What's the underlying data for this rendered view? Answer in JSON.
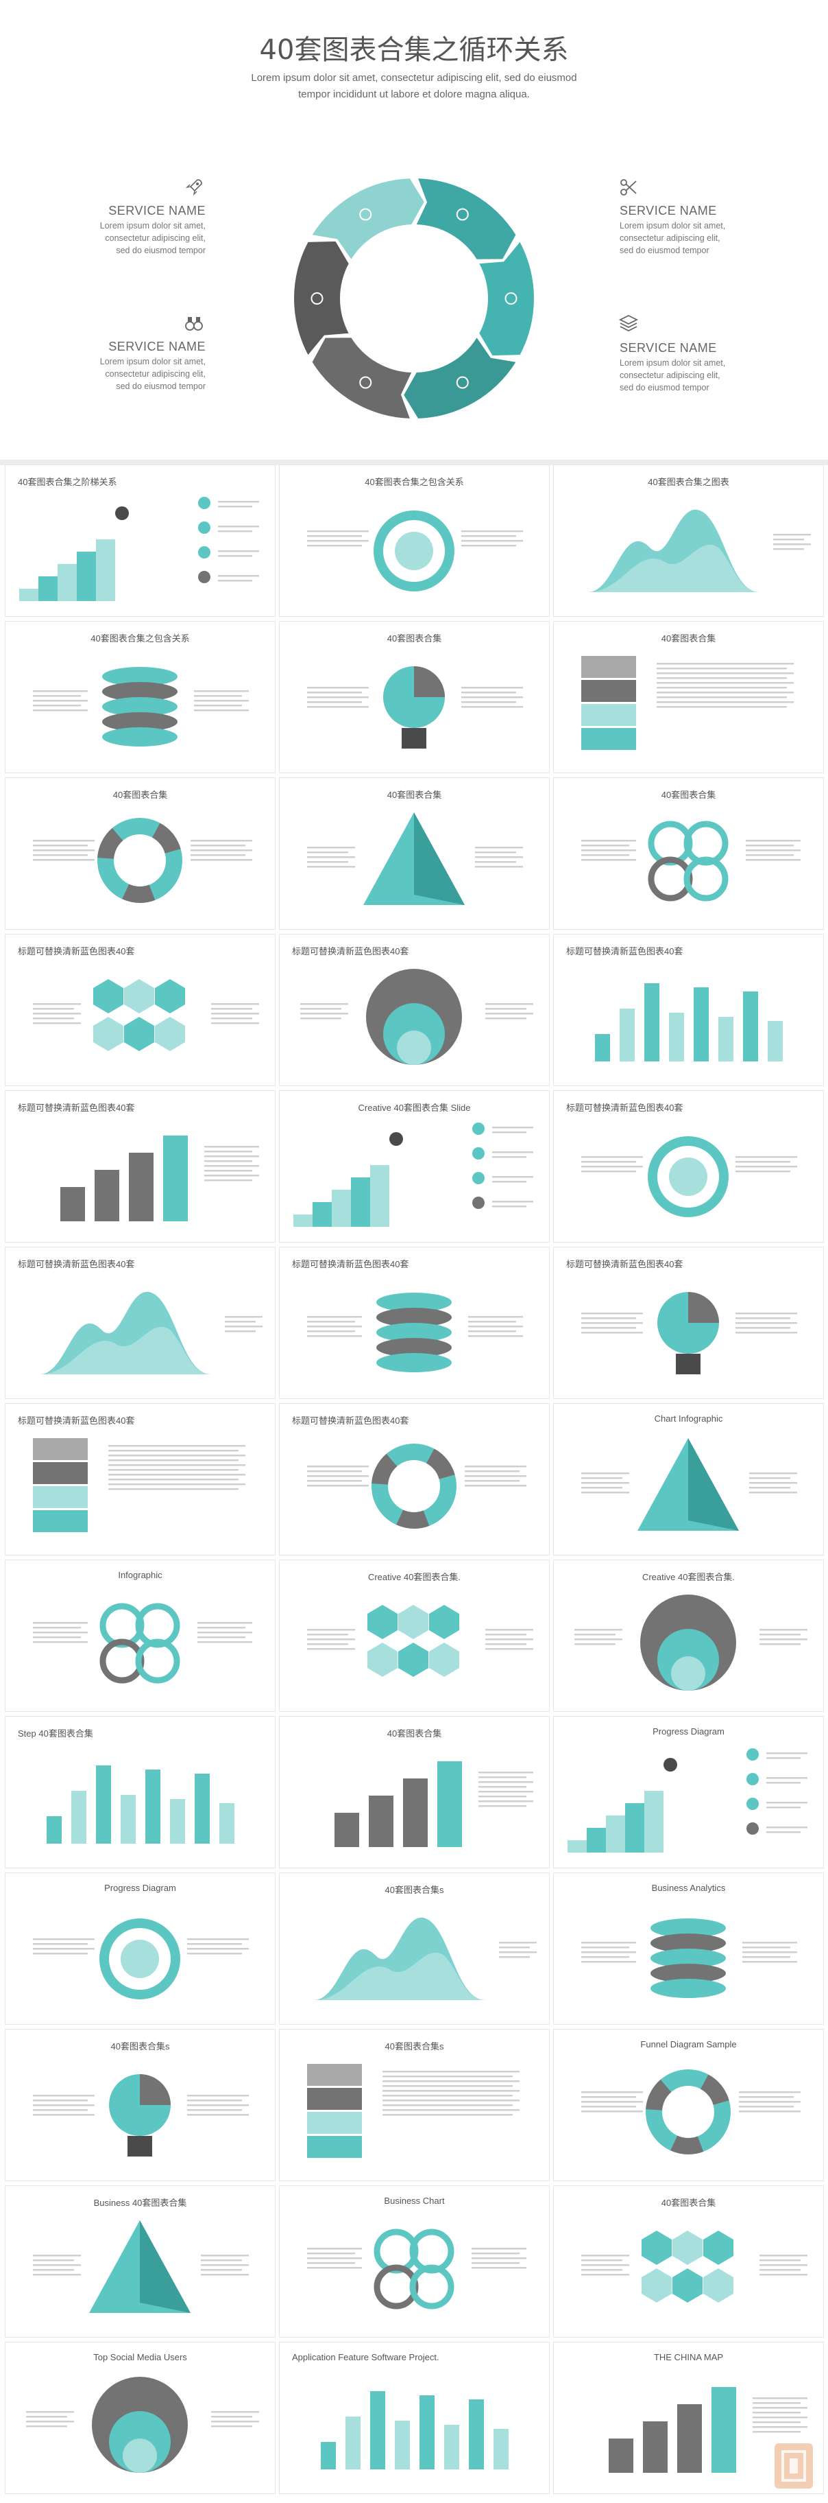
{
  "hero": {
    "title": "40套图表合集之循环关系",
    "subtitle": "Lorem ipsum dolor sit amet, consectetur adipiscing elit, sed do eiusmod tempor incididunt ut labore et dolore magna aliqua.",
    "services": [
      {
        "name": "SERVICE NAME",
        "text": "Lorem ipsum dolor sit amet, consectetur adipiscing elit, sed do eiusmod tempor",
        "icon": "rocket-icon"
      },
      {
        "name": "SERVICE NAME",
        "text": "Lorem ipsum dolor sit amet, consectetur adipiscing elit, sed do eiusmod tempor",
        "icon": "binoculars-icon"
      },
      {
        "name": "SERVICE NAME",
        "text": "Lorem ipsum dolor sit amet, consectetur adipiscing elit, sed do eiusmod tempor",
        "icon": "scissors-icon"
      },
      {
        "name": "SERVICE NAME",
        "text": "Lorem ipsum dolor sit amet, consectetur adipiscing elit, sed do eiusmod tempor",
        "icon": "layers-icon"
      }
    ]
  },
  "colors": {
    "teal": "#5cc6c3",
    "teal_dark": "#3a9e9b",
    "teal_light": "#a7dfdc",
    "gray": "#737373",
    "gray_dark": "#4a4a4a",
    "gray_light": "#a8a8a8"
  },
  "thumbs": [
    {
      "title": "40套图表合集之阶梯关系",
      "align": "left"
    },
    {
      "title": "40套图表合集之包含关系",
      "align": "center"
    },
    {
      "title": "40套图表合集之图表",
      "align": "center"
    },
    {
      "title": "40套图表合集之包含关系",
      "align": "center"
    },
    {
      "title": "40套图表合集",
      "align": "center"
    },
    {
      "title": "40套图表合集",
      "align": "center"
    },
    {
      "title": "40套图表合集",
      "align": "center"
    },
    {
      "title": "40套图表合集",
      "align": "center"
    },
    {
      "title": "40套图表合集",
      "align": "center"
    },
    {
      "title": "标题可替换清新蓝色图表40套",
      "align": "left"
    },
    {
      "title": "标题可替换清新蓝色图表40套",
      "align": "left"
    },
    {
      "title": "标题可替换清新蓝色图表40套",
      "align": "left"
    },
    {
      "title": "标题可替换清新蓝色图表40套",
      "align": "left"
    },
    {
      "title": "Creative 40套图表合集 Slide",
      "align": "center"
    },
    {
      "title": "标题可替换清新蓝色图表40套",
      "align": "left"
    },
    {
      "title": "标题可替换清新蓝色图表40套",
      "align": "left"
    },
    {
      "title": "标题可替换清新蓝色图表40套",
      "align": "left"
    },
    {
      "title": "标题可替换清新蓝色图表40套",
      "align": "left"
    },
    {
      "title": "标题可替换清新蓝色图表40套",
      "align": "left"
    },
    {
      "title": "标题可替换清新蓝色图表40套",
      "align": "left"
    },
    {
      "title": "Chart Infographic",
      "align": "center"
    },
    {
      "title": "Infographic",
      "align": "center"
    },
    {
      "title": "Creative 40套图表合集.",
      "align": "center"
    },
    {
      "title": "Creative 40套图表合集.",
      "align": "center"
    },
    {
      "title": "Step 40套图表合集",
      "align": "left"
    },
    {
      "title": "40套图表合集",
      "align": "center"
    },
    {
      "title": "Progress Diagram",
      "align": "center"
    },
    {
      "title": "Progress Diagram",
      "align": "center"
    },
    {
      "title": "40套图表合集s",
      "align": "center"
    },
    {
      "title": "Business Analytics",
      "align": "center"
    },
    {
      "title": "40套图表合集s",
      "align": "center"
    },
    {
      "title": "40套图表合集s",
      "align": "center"
    },
    {
      "title": "Funnel Diagram Sample",
      "align": "center"
    },
    {
      "title": "Business 40套图表合集",
      "align": "center"
    },
    {
      "title": "Business Chart",
      "align": "center"
    },
    {
      "title": "40套图表合集",
      "align": "center"
    },
    {
      "title": "Top Social Media Users",
      "align": "center"
    },
    {
      "title": "Application Feature Software Project.",
      "align": "left"
    },
    {
      "title": "THE CHINA MAP",
      "align": "center"
    }
  ]
}
